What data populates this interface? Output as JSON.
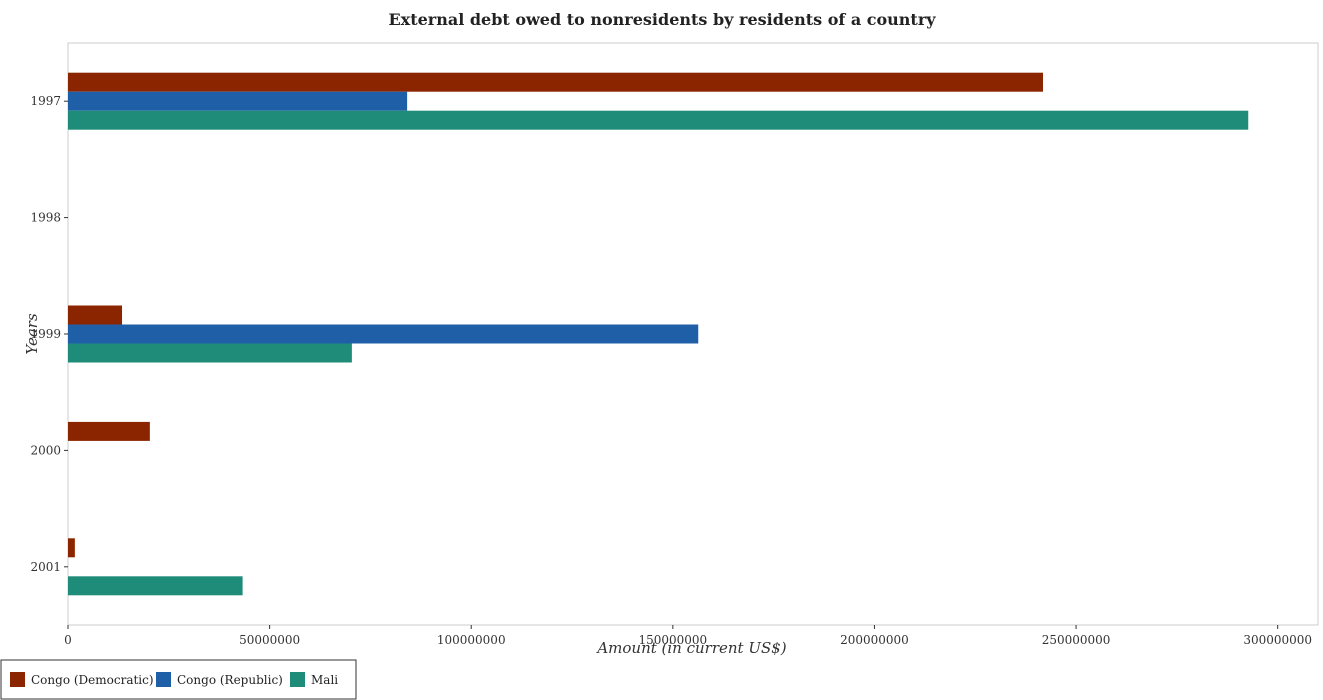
{
  "chart_data": {
    "type": "bar",
    "orientation": "horizontal",
    "title": "External debt owed to nonresidents by residents of a country",
    "xlabel": "Amount (in current US$)",
    "ylabel": "Years",
    "categories": [
      "1997",
      "1998",
      "1999",
      "2000",
      "2001"
    ],
    "xlim": [
      0,
      310000000
    ],
    "x_ticks": [
      0,
      50000000,
      100000000,
      150000000,
      200000000,
      250000000,
      300000000
    ],
    "x_tick_labels": [
      "0",
      "50000000",
      "100000000",
      "150000000",
      "200000000",
      "250000000",
      "300000000"
    ],
    "series": [
      {
        "name": "Congo (Democratic)",
        "color": "#8b2500",
        "values": [
          241800000,
          0,
          13400000,
          20300000,
          1700000
        ]
      },
      {
        "name": "Congo (Republic)",
        "color": "#1f5fa8",
        "values": [
          84100000,
          0,
          156300000,
          0,
          0
        ]
      },
      {
        "name": "Mali",
        "color": "#1e8c78",
        "values": [
          292700000,
          0,
          70400000,
          0,
          43300000
        ]
      }
    ],
    "legend_position": "bottom-left",
    "grid": false
  }
}
